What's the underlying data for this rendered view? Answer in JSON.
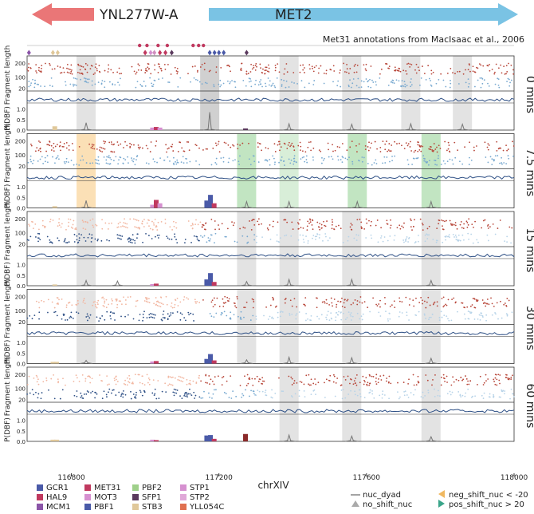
{
  "genes": {
    "left": {
      "name": "YNL277W-A",
      "color": "#ea7677"
    },
    "right": {
      "name": "MET2",
      "color": "#7ac3e4"
    }
  },
  "annotation_text": "Met31 annotations from MacIsaac et al., 2006",
  "chart_data": {
    "type": "scatter",
    "xlabel": "chrXIV",
    "xticks": [
      116800,
      117200,
      117600,
      118000
    ],
    "xlim": [
      116680,
      118000
    ],
    "ylabel_fragment": "Fragment length",
    "ylabel_dbf": "P(DBF)",
    "fragment_ticks": [
      20,
      100,
      200
    ],
    "fragment_ylim": [
      0,
      230
    ],
    "dbf_ticks": [
      0.0,
      0.5,
      1.0
    ],
    "dbf_ylim": [
      0,
      1.1
    ],
    "motif_sites": [
      {
        "x": 116685,
        "color": "#8b55a8",
        "row": 1
      },
      {
        "x": 116750,
        "color": "#e0c89a",
        "row": 1
      },
      {
        "x": 116763,
        "color": "#e0c89a",
        "row": 1
      },
      {
        "x": 116985,
        "color": "#c0395f",
        "row": 0
      },
      {
        "x": 117005,
        "color": "#c0395f",
        "row": 0
      },
      {
        "x": 117035,
        "color": "#c0395f",
        "row": 0
      },
      {
        "x": 117060,
        "color": "#c0395f",
        "row": 0
      },
      {
        "x": 117130,
        "color": "#c0395f",
        "row": 0
      },
      {
        "x": 117145,
        "color": "#c0395f",
        "row": 0
      },
      {
        "x": 117158,
        "color": "#c0395f",
        "row": 0
      },
      {
        "x": 117000,
        "color": "#c0395f",
        "row": 1
      },
      {
        "x": 117015,
        "color": "#d690d0",
        "row": 1
      },
      {
        "x": 117025,
        "color": "#d08fbf",
        "row": 1
      },
      {
        "x": 117040,
        "color": "#c0395f",
        "row": 1
      },
      {
        "x": 117055,
        "color": "#c0395f",
        "row": 1
      },
      {
        "x": 117072,
        "color": "#5b3a5e",
        "row": 1
      },
      {
        "x": 117175,
        "color": "#4a5aa8",
        "row": 1
      },
      {
        "x": 117188,
        "color": "#4a5aa8",
        "row": 1
      },
      {
        "x": 117200,
        "color": "#4a5aa8",
        "row": 1
      },
      {
        "x": 117213,
        "color": "#4a5aa8",
        "row": 1
      },
      {
        "x": 117275,
        "color": "#5b3a5e",
        "row": 1
      }
    ],
    "panels": [
      {
        "time_label": "0 mins",
        "nucleosome_peaks": [
          {
            "x": 116840,
            "height": 0.35
          },
          {
            "x": 117175,
            "height": 0.85
          },
          {
            "x": 117390,
            "height": 0.3
          },
          {
            "x": 117560,
            "height": 0.28
          },
          {
            "x": 117720,
            "height": 0.3
          },
          {
            "x": 117860,
            "height": 0.28
          }
        ],
        "dbf_bars": [
          {
            "x": 116755,
            "value": 0.18,
            "color": "#e0c89a"
          },
          {
            "x": 117020,
            "value": 0.12,
            "color": "#d690d0"
          },
          {
            "x": 117030,
            "value": 0.15,
            "color": "#c0395f"
          },
          {
            "x": 117040,
            "value": 0.12,
            "color": "#d690d0"
          },
          {
            "x": 117272,
            "value": 0.08,
            "color": "#5b3a5e"
          }
        ]
      },
      {
        "time_label": "7.5 mins",
        "nucleosome_peaks": [
          {
            "x": 116840,
            "height": 0.35
          },
          {
            "x": 117275,
            "height": 0.3
          },
          {
            "x": 117390,
            "height": 0.3
          },
          {
            "x": 117575,
            "height": 0.3
          },
          {
            "x": 117775,
            "height": 0.3
          }
        ],
        "dbf_bars": [
          {
            "x": 116755,
            "value": 0.08,
            "color": "#e0c89a"
          },
          {
            "x": 117020,
            "value": 0.15,
            "color": "#d690d0"
          },
          {
            "x": 117030,
            "value": 0.38,
            "color": "#c0395f"
          },
          {
            "x": 117040,
            "value": 0.22,
            "color": "#d690d0"
          },
          {
            "x": 117167,
            "value": 0.35,
            "color": "#4a5aa8"
          },
          {
            "x": 117177,
            "value": 0.62,
            "color": "#4a5aa8"
          },
          {
            "x": 117187,
            "value": 0.22,
            "color": "#c0395f"
          }
        ]
      },
      {
        "time_label": "15 mins",
        "nucleosome_peaks": [
          {
            "x": 116840,
            "height": 0.25
          },
          {
            "x": 116925,
            "height": 0.22
          },
          {
            "x": 117275,
            "height": 0.2
          },
          {
            "x": 117390,
            "height": 0.3
          },
          {
            "x": 117560,
            "height": 0.3
          },
          {
            "x": 117775,
            "height": 0.25
          }
        ],
        "dbf_bars": [
          {
            "x": 116755,
            "value": 0.06,
            "color": "#e0c89a"
          },
          {
            "x": 117020,
            "value": 0.08,
            "color": "#d690d0"
          },
          {
            "x": 117030,
            "value": 0.1,
            "color": "#c0395f"
          },
          {
            "x": 117167,
            "value": 0.3,
            "color": "#4a5aa8"
          },
          {
            "x": 117177,
            "value": 0.6,
            "color": "#4a5aa8"
          },
          {
            "x": 117187,
            "value": 0.18,
            "color": "#c0395f"
          }
        ]
      },
      {
        "time_label": "30 mins",
        "nucleosome_peaks": [
          {
            "x": 116840,
            "height": 0.15
          },
          {
            "x": 117275,
            "height": 0.18
          },
          {
            "x": 117390,
            "height": 0.3
          },
          {
            "x": 117560,
            "height": 0.28
          },
          {
            "x": 117775,
            "height": 0.25
          }
        ],
        "dbf_bars": [
          {
            "x": 116750,
            "value": 0.08,
            "color": "#e0c89a"
          },
          {
            "x": 116760,
            "value": 0.08,
            "color": "#e0c89a"
          },
          {
            "x": 117020,
            "value": 0.1,
            "color": "#d690d0"
          },
          {
            "x": 117030,
            "value": 0.12,
            "color": "#c0395f"
          },
          {
            "x": 117167,
            "value": 0.22,
            "color": "#4a5aa8"
          },
          {
            "x": 117177,
            "value": 0.45,
            "color": "#4a5aa8"
          },
          {
            "x": 117187,
            "value": 0.15,
            "color": "#c0395f"
          }
        ]
      },
      {
        "time_label": "60 mins",
        "nucleosome_peaks": [
          {
            "x": 117390,
            "height": 0.3
          },
          {
            "x": 117560,
            "height": 0.25
          },
          {
            "x": 117775,
            "height": 0.22
          }
        ],
        "dbf_bars": [
          {
            "x": 116750,
            "value": 0.08,
            "color": "#e0c89a"
          },
          {
            "x": 116760,
            "value": 0.08,
            "color": "#e0c89a"
          },
          {
            "x": 117020,
            "value": 0.08,
            "color": "#d690d0"
          },
          {
            "x": 117030,
            "value": 0.06,
            "color": "#c0395f"
          },
          {
            "x": 117167,
            "value": 0.28,
            "color": "#4a5aa8"
          },
          {
            "x": 117177,
            "value": 0.3,
            "color": "#4a5aa8"
          },
          {
            "x": 117187,
            "value": 0.12,
            "color": "#c0395f"
          },
          {
            "x": 117272,
            "value": 0.35,
            "color": "#8b2a2a"
          }
        ]
      }
    ],
    "highlight_bands": [
      {
        "x": 116840,
        "color": "#cccccc",
        "panels": [
          0
        ]
      },
      {
        "x": 117175,
        "color": "#aaaaaa",
        "panels": [
          0
        ]
      },
      {
        "x": 117390,
        "color": "#cccccc",
        "panels": [
          0,
          2,
          3,
          4
        ]
      },
      {
        "x": 117560,
        "color": "#cccccc",
        "panels": [
          0,
          2,
          3,
          4
        ]
      },
      {
        "x": 117720,
        "color": "#cccccc",
        "panels": [
          0
        ]
      },
      {
        "x": 117860,
        "color": "#cccccc",
        "panels": [
          0
        ]
      },
      {
        "x": 116840,
        "color": "#f7c77a",
        "panels": [
          1
        ]
      },
      {
        "x": 117275,
        "color": "#8fcf8f",
        "panels": [
          1
        ]
      },
      {
        "x": 117390,
        "color": "#b8e0b8",
        "panels": [
          1
        ]
      },
      {
        "x": 117575,
        "color": "#8fcf8f",
        "panels": [
          1
        ]
      },
      {
        "x": 117775,
        "color": "#8fcf8f",
        "panels": [
          1
        ]
      },
      {
        "x": 116840,
        "color": "#cccccc",
        "panels": [
          2,
          3
        ]
      },
      {
        "x": 117275,
        "color": "#cccccc",
        "panels": [
          2,
          3
        ]
      },
      {
        "x": 117775,
        "color": "#cccccc",
        "panels": [
          2,
          3,
          4
        ]
      }
    ]
  },
  "legend_factors": [
    {
      "name": "GCR1",
      "color": "#4a5aa8"
    },
    {
      "name": "HAL9",
      "color": "#c0395f"
    },
    {
      "name": "MCM1",
      "color": "#8b55a8"
    },
    {
      "name": "MET31",
      "color": "#c0395f"
    },
    {
      "name": "MOT3",
      "color": "#d690d0"
    },
    {
      "name": "PBF1",
      "color": "#4a5aa8"
    },
    {
      "name": "PBF2",
      "color": "#9fd08a"
    },
    {
      "name": "SFP1",
      "color": "#5b3a5e"
    },
    {
      "name": "STB3",
      "color": "#e0c89a"
    },
    {
      "name": "STP1",
      "color": "#d690d0"
    },
    {
      "name": "STP2",
      "color": "#e0a8d8"
    },
    {
      "name": "YLL054C",
      "color": "#e07050"
    }
  ],
  "legend_markers": [
    {
      "name": "nuc_dyad",
      "symbol": "line",
      "color": "#666666"
    },
    {
      "name": "no_shift_nuc",
      "symbol": "triangle",
      "color": "#aaaaaa"
    },
    {
      "name": "neg_shift_nuc < -20",
      "symbol": "triangle-left",
      "color": "#f0b860"
    },
    {
      "name": "pos_shift_nuc > 20",
      "symbol": "triangle-right",
      "color": "#3aa58a"
    }
  ]
}
